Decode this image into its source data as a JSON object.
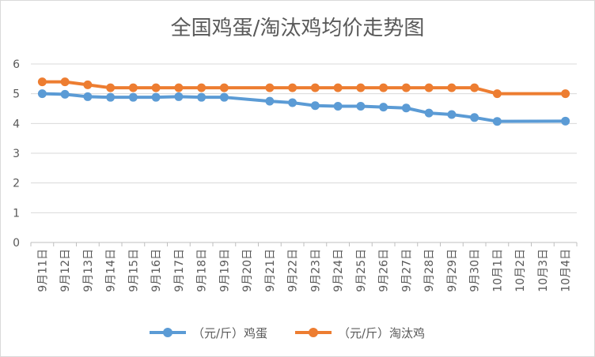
{
  "chart_data": {
    "type": "line",
    "title": "全国鸡蛋/淘汰鸡均价走势图",
    "xlabel": "",
    "ylabel": "",
    "ylim": [
      0,
      6
    ],
    "yticks": [
      0,
      1,
      2,
      3,
      4,
      5,
      6
    ],
    "grid": true,
    "legend_position": "bottom",
    "categories": [
      "9月11日",
      "9月12日",
      "9月13日",
      "9月14日",
      "9月15日",
      "9月16日",
      "9月17日",
      "9月18日",
      "9月19日",
      "9月20日",
      "9月21日",
      "9月22日",
      "9月23日",
      "9月24日",
      "9月25日",
      "9月26日",
      "9月27日",
      "9月28日",
      "9月29日",
      "9月30日",
      "10月1日",
      "10月2日",
      "10月3日",
      "10月4日"
    ],
    "series": [
      {
        "name": "（元/斤）鸡蛋",
        "color": "#5b9bd5",
        "values": [
          5.0,
          4.98,
          4.9,
          4.88,
          4.88,
          4.88,
          4.9,
          4.88,
          4.88,
          null,
          4.75,
          4.7,
          4.6,
          4.58,
          4.58,
          4.55,
          4.52,
          4.35,
          4.3,
          4.2,
          4.07,
          null,
          null,
          4.08
        ]
      },
      {
        "name": "（元/斤）淘汰鸡",
        "color": "#ed7d31",
        "values": [
          5.4,
          5.4,
          5.3,
          5.2,
          5.2,
          5.2,
          5.2,
          5.2,
          5.2,
          null,
          5.2,
          5.2,
          5.2,
          5.2,
          5.2,
          5.2,
          5.2,
          5.2,
          5.2,
          5.2,
          5.0,
          null,
          null,
          5.0
        ]
      }
    ]
  }
}
